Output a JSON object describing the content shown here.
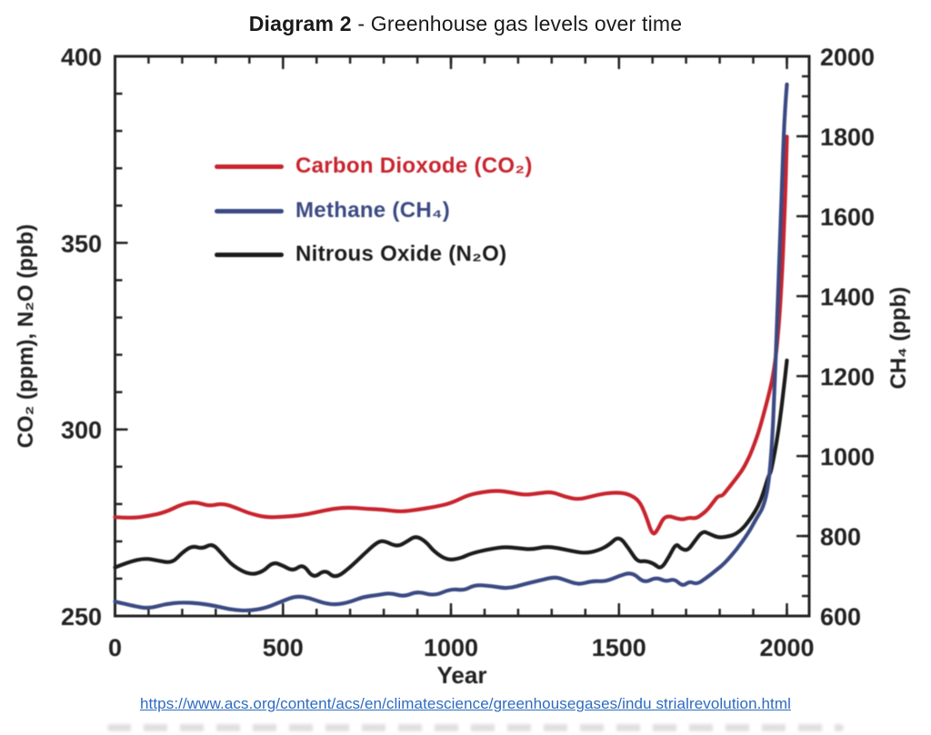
{
  "page": {
    "title_bold": "Diagram 2",
    "title_rest": " - Greenhouse gas levels over time",
    "source_link": "https://www.acs.org/content/acs/en/climatescience/greenhousegases/indu strialrevolution.html"
  },
  "chart_data": {
    "type": "line",
    "title": "Diagram 2 - Greenhouse gas levels over time",
    "xlabel": "Year",
    "ylabel_left": "CO₂ (ppm), N₂O (ppb)",
    "ylabel_right": "CH₄ (ppb)",
    "grid": false,
    "legend_position": "upper-left-inside",
    "x_domain": [
      0,
      2066
    ],
    "x_ticks_major": [
      0,
      500,
      1000,
      1500,
      2000
    ],
    "x_tick_minor_step": 100,
    "left_axis": {
      "domain": [
        250,
        400
      ],
      "ticks_major": [
        250,
        300,
        350,
        400
      ],
      "minor_step": 10
    },
    "right_axis": {
      "domain": [
        600,
        2000
      ],
      "ticks_major": [
        600,
        800,
        1000,
        1200,
        1400,
        1600,
        1800,
        2000
      ],
      "minor_step": 50
    },
    "axis_color": "#222222",
    "legend": [
      {
        "series": "co2",
        "label": "Carbon Dioxode (CO₂)",
        "color": "#c8242e"
      },
      {
        "series": "ch4",
        "label": "Methane (CH₄)",
        "color": "#3b4a83"
      },
      {
        "series": "n2o",
        "label": "Nitrous Oxide (N₂O)",
        "color": "#1c1c1c"
      }
    ],
    "series": [
      {
        "id": "co2",
        "name": "Carbon Dioxode (CO₂)",
        "axis": "left",
        "unit": "ppm",
        "color": "#c8242e",
        "points": [
          [
            0,
            276.5
          ],
          [
            50,
            276.2
          ],
          [
            100,
            276.8
          ],
          [
            150,
            277.8
          ],
          [
            200,
            280.0
          ],
          [
            240,
            280.6
          ],
          [
            280,
            279.4
          ],
          [
            320,
            280.2
          ],
          [
            360,
            279.0
          ],
          [
            400,
            277.5
          ],
          [
            450,
            276.4
          ],
          [
            500,
            276.6
          ],
          [
            550,
            276.9
          ],
          [
            600,
            277.8
          ],
          [
            650,
            278.8
          ],
          [
            700,
            279.1
          ],
          [
            750,
            278.7
          ],
          [
            800,
            278.5
          ],
          [
            850,
            277.9
          ],
          [
            900,
            278.5
          ],
          [
            950,
            279.2
          ],
          [
            1000,
            280.2
          ],
          [
            1050,
            282.4
          ],
          [
            1100,
            283.3
          ],
          [
            1140,
            283.6
          ],
          [
            1180,
            283.1
          ],
          [
            1220,
            282.4
          ],
          [
            1260,
            282.9
          ],
          [
            1300,
            283.3
          ],
          [
            1340,
            281.9
          ],
          [
            1380,
            281.2
          ],
          [
            1420,
            282.1
          ],
          [
            1460,
            282.9
          ],
          [
            1500,
            283.1
          ],
          [
            1530,
            282.6
          ],
          [
            1560,
            281.0
          ],
          [
            1580,
            277.0
          ],
          [
            1600,
            271.5
          ],
          [
            1615,
            273.0
          ],
          [
            1632,
            276.3
          ],
          [
            1650,
            276.8
          ],
          [
            1670,
            276.2
          ],
          [
            1690,
            275.8
          ],
          [
            1710,
            276.4
          ],
          [
            1730,
            276.1
          ],
          [
            1750,
            277.4
          ],
          [
            1765,
            278.6
          ],
          [
            1780,
            280.4
          ],
          [
            1795,
            282.2
          ],
          [
            1808,
            282.2
          ],
          [
            1822,
            283.8
          ],
          [
            1838,
            285.6
          ],
          [
            1855,
            287.6
          ],
          [
            1872,
            289.8
          ],
          [
            1890,
            293.0
          ],
          [
            1905,
            296.5
          ],
          [
            1920,
            300.5
          ],
          [
            1935,
            305.5
          ],
          [
            1948,
            310.0
          ],
          [
            1958,
            314.0
          ],
          [
            1968,
            320.0
          ],
          [
            1978,
            330.0
          ],
          [
            1986,
            342.0
          ],
          [
            1992,
            355.0
          ],
          [
            1997,
            368.0
          ],
          [
            2000,
            378.5
          ]
        ]
      },
      {
        "id": "ch4",
        "name": "Methane (CH₄)",
        "axis": "right",
        "unit": "ppb",
        "color": "#3b4a83",
        "points": [
          [
            0,
            636
          ],
          [
            50,
            626
          ],
          [
            100,
            618
          ],
          [
            150,
            630
          ],
          [
            200,
            634
          ],
          [
            250,
            632
          ],
          [
            300,
            625
          ],
          [
            350,
            615
          ],
          [
            400,
            613
          ],
          [
            450,
            620
          ],
          [
            500,
            638
          ],
          [
            540,
            650
          ],
          [
            580,
            645
          ],
          [
            620,
            632
          ],
          [
            660,
            628
          ],
          [
            700,
            635
          ],
          [
            740,
            648
          ],
          [
            780,
            652
          ],
          [
            820,
            658
          ],
          [
            860,
            648
          ],
          [
            900,
            662
          ],
          [
            950,
            650
          ],
          [
            1000,
            668
          ],
          [
            1040,
            664
          ],
          [
            1070,
            678
          ],
          [
            1120,
            675
          ],
          [
            1170,
            668
          ],
          [
            1220,
            680
          ],
          [
            1270,
            690
          ],
          [
            1310,
            698
          ],
          [
            1340,
            690
          ],
          [
            1380,
            678
          ],
          [
            1420,
            688
          ],
          [
            1460,
            686
          ],
          [
            1500,
            700
          ],
          [
            1540,
            710
          ],
          [
            1575,
            682
          ],
          [
            1610,
            697
          ],
          [
            1640,
            686
          ],
          [
            1665,
            693
          ],
          [
            1690,
            674
          ],
          [
            1710,
            687
          ],
          [
            1732,
            679
          ],
          [
            1760,
            695
          ],
          [
            1790,
            715
          ],
          [
            1815,
            732
          ],
          [
            1850,
            766
          ],
          [
            1885,
            807
          ],
          [
            1910,
            845
          ],
          [
            1930,
            872
          ],
          [
            1945,
            925
          ],
          [
            1955,
            1020
          ],
          [
            1963,
            1160
          ],
          [
            1970,
            1320
          ],
          [
            1977,
            1480
          ],
          [
            1984,
            1650
          ],
          [
            1990,
            1790
          ],
          [
            1995,
            1875
          ],
          [
            2000,
            1930
          ]
        ]
      },
      {
        "id": "n2o",
        "name": "Nitrous Oxide (N₂O)",
        "axis": "left",
        "unit": "ppb",
        "color": "#1c1c1c",
        "points": [
          [
            0,
            263.0
          ],
          [
            40,
            264.5
          ],
          [
            90,
            265.5
          ],
          [
            130,
            264.8
          ],
          [
            170,
            264.2
          ],
          [
            200,
            267.0
          ],
          [
            230,
            268.8
          ],
          [
            260,
            268.0
          ],
          [
            290,
            269.5
          ],
          [
            320,
            266.5
          ],
          [
            350,
            263.5
          ],
          [
            400,
            261.0
          ],
          [
            440,
            261.8
          ],
          [
            470,
            264.5
          ],
          [
            500,
            263.5
          ],
          [
            530,
            262.0
          ],
          [
            560,
            264.0
          ],
          [
            590,
            260.0
          ],
          [
            625,
            262.5
          ],
          [
            655,
            260.0
          ],
          [
            700,
            263.0
          ],
          [
            740,
            266.5
          ],
          [
            780,
            269.8
          ],
          [
            800,
            270.2
          ],
          [
            840,
            268.5
          ],
          [
            870,
            270.0
          ],
          [
            895,
            271.5
          ],
          [
            925,
            270.0
          ],
          [
            950,
            267.2
          ],
          [
            990,
            264.9
          ],
          [
            1030,
            265.5
          ],
          [
            1060,
            266.8
          ],
          [
            1120,
            268.0
          ],
          [
            1160,
            268.5
          ],
          [
            1200,
            268.2
          ],
          [
            1240,
            267.8
          ],
          [
            1280,
            268.6
          ],
          [
            1320,
            268.2
          ],
          [
            1360,
            267.4
          ],
          [
            1400,
            266.8
          ],
          [
            1440,
            267.6
          ],
          [
            1470,
            269.0
          ],
          [
            1500,
            271.5
          ],
          [
            1530,
            268.0
          ],
          [
            1555,
            264.5
          ],
          [
            1580,
            264.8
          ],
          [
            1605,
            264.0
          ],
          [
            1625,
            262.5
          ],
          [
            1650,
            266.0
          ],
          [
            1670,
            269.5
          ],
          [
            1685,
            268.0
          ],
          [
            1705,
            267.5
          ],
          [
            1725,
            270.0
          ],
          [
            1749,
            272.8
          ],
          [
            1770,
            272.0
          ],
          [
            1795,
            271.0
          ],
          [
            1820,
            271.2
          ],
          [
            1845,
            271.8
          ],
          [
            1870,
            273.5
          ],
          [
            1895,
            276.5
          ],
          [
            1915,
            279.5
          ],
          [
            1930,
            283.0
          ],
          [
            1945,
            287.5
          ],
          [
            1952,
            288.5
          ],
          [
            1960,
            292.0
          ],
          [
            1970,
            297.0
          ],
          [
            1980,
            303.0
          ],
          [
            1990,
            310.5
          ],
          [
            2000,
            318.5
          ]
        ]
      }
    ]
  }
}
